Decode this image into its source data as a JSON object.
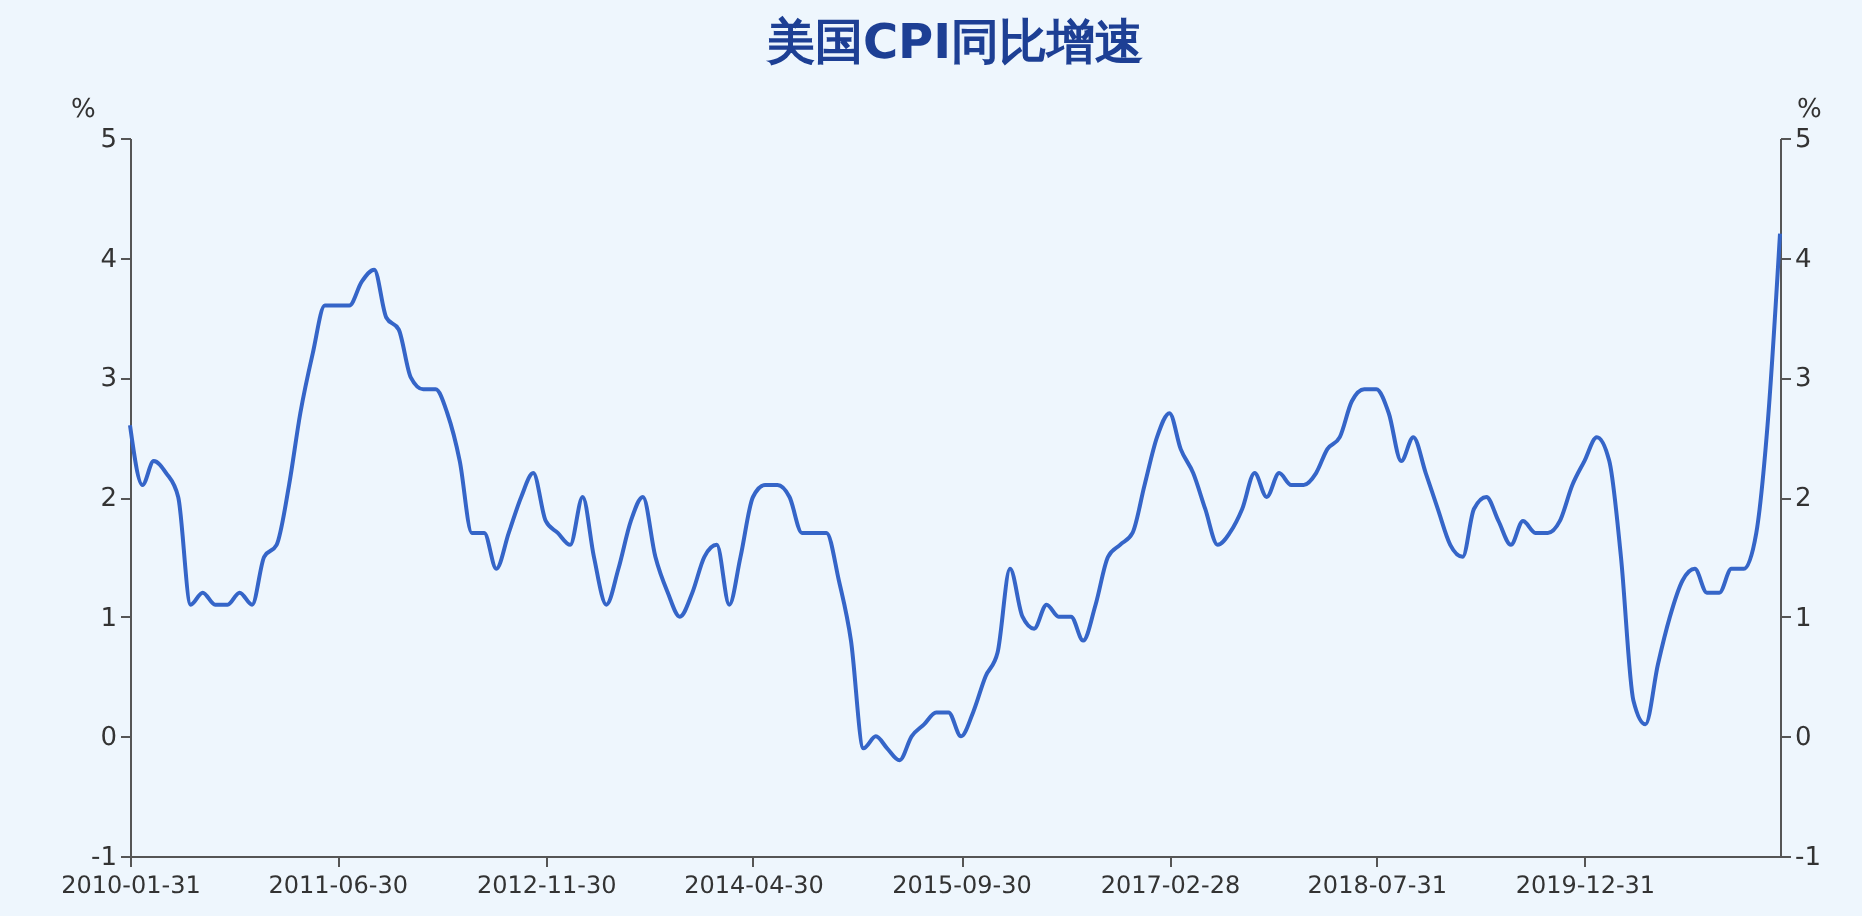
{
  "chart_data": {
    "type": "line",
    "title": "美国CPI同比增速",
    "ylabel": "%",
    "y2label": "%",
    "x": [
      "2010-01",
      "2010-02",
      "2010-03",
      "2010-04",
      "2010-05",
      "2010-06",
      "2010-07",
      "2010-08",
      "2010-09",
      "2010-10",
      "2010-11",
      "2010-12",
      "2011-01",
      "2011-02",
      "2011-03",
      "2011-04",
      "2011-05",
      "2011-06",
      "2011-07",
      "2011-08",
      "2011-09",
      "2011-10",
      "2011-11",
      "2011-12",
      "2012-01",
      "2012-02",
      "2012-03",
      "2012-04",
      "2012-05",
      "2012-06",
      "2012-07",
      "2012-08",
      "2012-09",
      "2012-10",
      "2012-11",
      "2012-12",
      "2013-01",
      "2013-02",
      "2013-03",
      "2013-04",
      "2013-05",
      "2013-06",
      "2013-07",
      "2013-08",
      "2013-09",
      "2013-10",
      "2013-11",
      "2013-12",
      "2014-01",
      "2014-02",
      "2014-03",
      "2014-04",
      "2014-05",
      "2014-06",
      "2014-07",
      "2014-08",
      "2014-09",
      "2014-10",
      "2014-11",
      "2014-12",
      "2015-01",
      "2015-02",
      "2015-03",
      "2015-04",
      "2015-05",
      "2015-06",
      "2015-07",
      "2015-08",
      "2015-09",
      "2015-10",
      "2015-11",
      "2015-12",
      "2016-01",
      "2016-02",
      "2016-03",
      "2016-04",
      "2016-05",
      "2016-06",
      "2016-07",
      "2016-08",
      "2016-09",
      "2016-10",
      "2016-11",
      "2016-12",
      "2017-01",
      "2017-02",
      "2017-03",
      "2017-04",
      "2017-05",
      "2017-06",
      "2017-07",
      "2017-08",
      "2017-09",
      "2017-10",
      "2017-11",
      "2017-12",
      "2018-01",
      "2018-02",
      "2018-03",
      "2018-04",
      "2018-05",
      "2018-06",
      "2018-07",
      "2018-08",
      "2018-09",
      "2018-10",
      "2018-11",
      "2018-12",
      "2019-01",
      "2019-02",
      "2019-03",
      "2019-04",
      "2019-05",
      "2019-06",
      "2019-07",
      "2019-08",
      "2019-09",
      "2019-10",
      "2019-11",
      "2019-12",
      "2020-01",
      "2020-02",
      "2020-03",
      "2020-04",
      "2020-05",
      "2020-06",
      "2020-07",
      "2020-08",
      "2020-09",
      "2020-10",
      "2020-11",
      "2020-12",
      "2021-01",
      "2021-02",
      "2021-03",
      "2021-04"
    ],
    "series": [
      {
        "color": "#3565c8",
        "values": [
          2.6,
          2.1,
          2.3,
          2.2,
          2.0,
          1.1,
          1.2,
          1.1,
          1.1,
          1.2,
          1.1,
          1.5,
          1.6,
          2.1,
          2.7,
          3.2,
          3.6,
          3.6,
          3.6,
          3.8,
          3.9,
          3.5,
          3.4,
          3.0,
          2.9,
          2.9,
          2.7,
          2.3,
          1.7,
          1.7,
          1.4,
          1.7,
          2.0,
          2.2,
          1.8,
          1.7,
          1.6,
          2.0,
          1.5,
          1.1,
          1.4,
          1.8,
          2.0,
          1.5,
          1.2,
          1.0,
          1.2,
          1.5,
          1.6,
          1.1,
          1.5,
          2.0,
          2.1,
          2.1,
          2.0,
          1.7,
          1.7,
          1.7,
          1.3,
          0.8,
          -0.1,
          0.0,
          -0.1,
          -0.2,
          0.0,
          0.1,
          0.2,
          0.2,
          0.0,
          0.2,
          0.5,
          0.7,
          1.4,
          1.0,
          0.9,
          1.1,
          1.0,
          1.0,
          0.8,
          1.1,
          1.5,
          1.6,
          1.7,
          2.1,
          2.5,
          2.7,
          2.4,
          2.2,
          1.9,
          1.6,
          1.7,
          1.9,
          2.2,
          2.0,
          2.2,
          2.1,
          2.1,
          2.2,
          2.4,
          2.5,
          2.8,
          2.9,
          2.9,
          2.7,
          2.3,
          2.5,
          2.2,
          1.9,
          1.6,
          1.5,
          1.9,
          2.0,
          1.8,
          1.6,
          1.8,
          1.7,
          1.7,
          1.8,
          2.1,
          2.3,
          2.5,
          2.3,
          1.5,
          0.3,
          0.1,
          0.6,
          1.0,
          1.3,
          1.4,
          1.2,
          1.2,
          1.4,
          1.4,
          1.7,
          2.6,
          4.2
        ]
      }
    ],
    "xlim": [
      "2010-01",
      "2021-04"
    ],
    "xticks": [
      {
        "value": "2010-01",
        "label": "2010-01-31"
      },
      {
        "value": "2011-06",
        "label": "2011-06-30"
      },
      {
        "value": "2012-11",
        "label": "2012-11-30"
      },
      {
        "value": "2014-04",
        "label": "2014-04-30"
      },
      {
        "value": "2015-09",
        "label": "2015-09-30"
      },
      {
        "value": "2017-02",
        "label": "2017-02-28"
      },
      {
        "value": "2018-07",
        "label": "2018-07-31"
      },
      {
        "value": "2019-12",
        "label": "2019-12-31"
      }
    ],
    "ylim": [
      -1,
      5
    ],
    "yticks": [
      -1,
      0,
      1,
      2,
      3,
      4,
      5
    ],
    "y2lim": [
      -1,
      5
    ],
    "y2ticks": [
      -1,
      0,
      1,
      2,
      3,
      4,
      5
    ]
  }
}
